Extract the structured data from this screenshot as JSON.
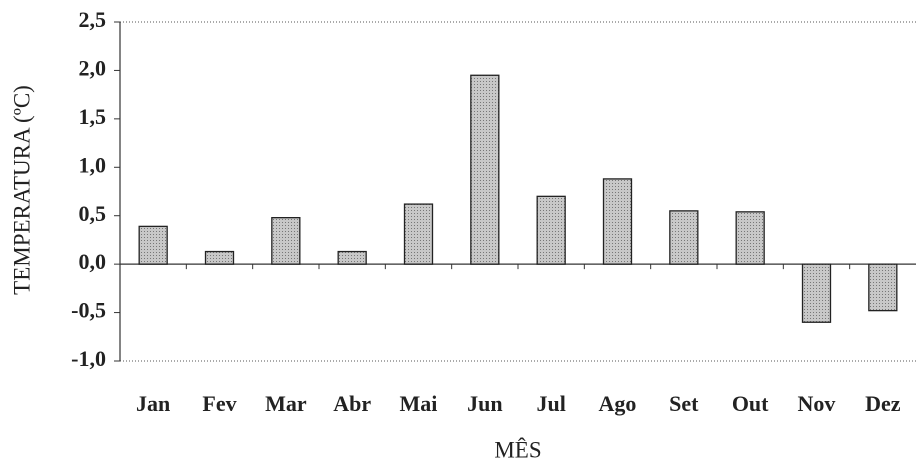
{
  "chart_data": {
    "type": "bar",
    "x_label": "MÊS",
    "y_label": "TEMPERATURA (ºC)",
    "categories": [
      "Jan",
      "Fev",
      "Mar",
      "Abr",
      "Mai",
      "Jun",
      "Jul",
      "Ago",
      "Set",
      "Out",
      "Nov",
      "Dez"
    ],
    "values": [
      0.39,
      0.13,
      0.48,
      0.13,
      0.62,
      1.95,
      0.7,
      0.88,
      0.55,
      0.54,
      -0.6,
      -0.48
    ],
    "color": "#b8b8b8",
    "ylim": [
      -1.0,
      2.5
    ],
    "yticks": [
      {
        "value": -1.0,
        "label": "-1,0"
      },
      {
        "value": -0.5,
        "label": "-0,5"
      },
      {
        "value": 0,
        "label": "0,0"
      },
      {
        "value": 0.5,
        "label": "0,5"
      },
      {
        "value": 1.0,
        "label": "1,0"
      },
      {
        "value": 1.5,
        "label": "1,5"
      },
      {
        "value": 2.0,
        "label": "2,0"
      },
      {
        "value": 2.5,
        "label": "2,5"
      }
    ],
    "grid": false
  }
}
